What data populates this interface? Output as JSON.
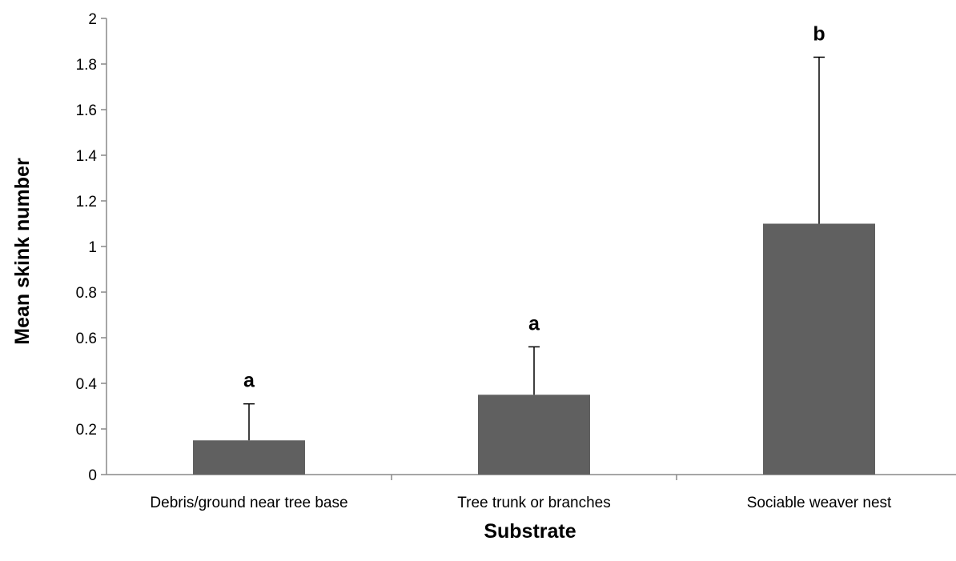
{
  "chart_data": {
    "type": "bar",
    "title": "",
    "xlabel": "Substrate",
    "ylabel": "Mean skink number",
    "ylim": [
      0,
      2
    ],
    "yticks": [
      "0",
      "0.2",
      "0.4",
      "0.6",
      "0.8",
      "1",
      "1.2",
      "1.4",
      "1.6",
      "1.8",
      "2"
    ],
    "grid": false,
    "categories": [
      "Debris/ground near tree base",
      "Tree trunk or branches",
      "Sociable weaver nest"
    ],
    "values": [
      0.15,
      0.35,
      1.1
    ],
    "error_upper": [
      0.16,
      0.21,
      0.73
    ],
    "significance_labels": [
      "a",
      "a",
      "b"
    ],
    "bar_color": "#606060"
  }
}
